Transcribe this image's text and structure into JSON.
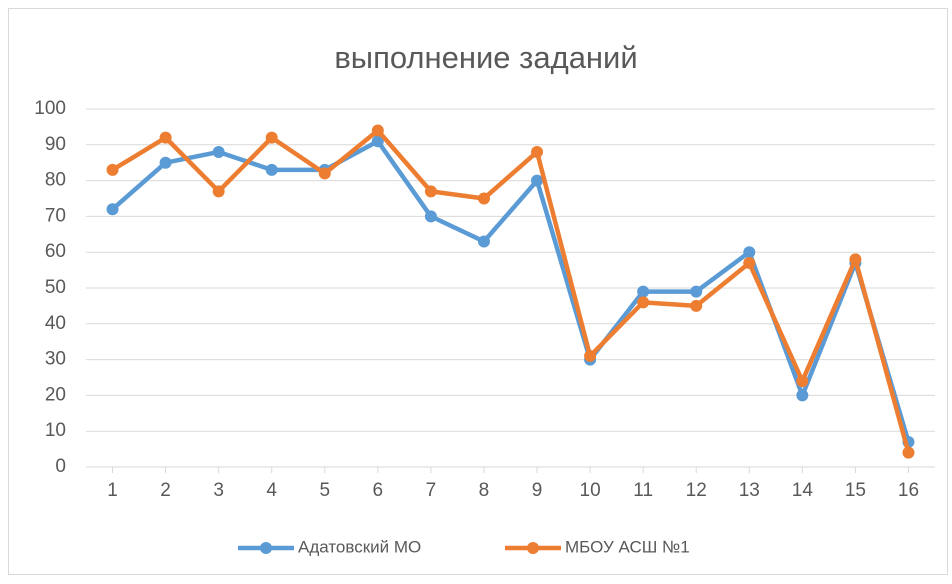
{
  "chart_data": {
    "type": "line",
    "title": "выполнение заданий",
    "categories": [
      "1",
      "2",
      "3",
      "4",
      "5",
      "6",
      "7",
      "8",
      "9",
      "10",
      "11",
      "12",
      "13",
      "14",
      "15",
      "16"
    ],
    "series": [
      {
        "name": "Адатовский МО",
        "color": "#5b9bd5",
        "values": [
          72,
          85,
          88,
          83,
          83,
          91,
          70,
          63,
          80,
          30,
          49,
          49,
          60,
          20,
          57,
          7
        ]
      },
      {
        "name": "МБОУ АСШ №1",
        "color": "#ed7d31",
        "values": [
          83,
          92,
          77,
          92,
          82,
          94,
          77,
          75,
          88,
          31,
          46,
          45,
          57,
          24,
          58,
          4
        ]
      }
    ],
    "ylim": [
      0,
      100
    ],
    "yticks": [
      0,
      10,
      20,
      30,
      40,
      50,
      60,
      70,
      80,
      90,
      100
    ],
    "grid": true,
    "legend": "bottom"
  }
}
